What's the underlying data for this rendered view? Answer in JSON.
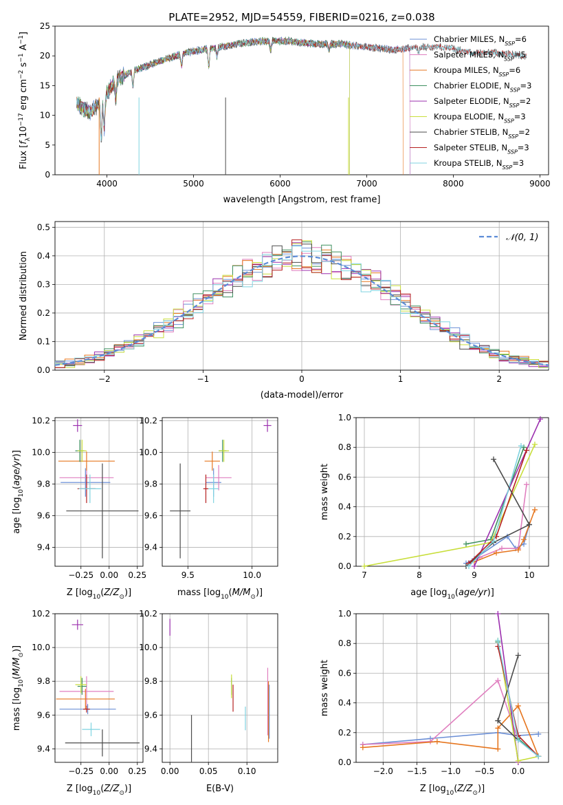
{
  "figure_title": "PLATE=2952, MJD=54559, FIBERID=0216, z=0.038",
  "colors": {
    "Chabrier MILES": "#6b8fd6",
    "Salpeter MILES": "#e07fbf",
    "Kroupa MILES": "#e6761f",
    "Chabrier ELODIE": "#3d8f5f",
    "Salpeter ELODIE": "#9b2fae",
    "Kroupa ELODIE": "#c8de3a",
    "Chabrier STELIB": "#4a4a4a",
    "Salpeter STELIB": "#b51f1f",
    "Kroupa STELIB": "#7fd3e0",
    "gaussian": "#5b8bd6"
  },
  "chart_data": [
    {
      "type": "line",
      "title": "PLATE=2952, MJD=54559, FIBERID=0216, z=0.038",
      "xlabel": "wavelength [Angstrom, rest frame]",
      "ylabel": "Flux [fλ10⁻¹⁷ erg cm⁻² s⁻¹ A⁻¹]",
      "xlim": [
        3400,
        9100
      ],
      "ylim": [
        0,
        25
      ],
      "xticks": [
        4000,
        5000,
        6000,
        7000,
        8000,
        9000
      ],
      "yticks": [
        0,
        5,
        10,
        15,
        20,
        25
      ],
      "grid": false,
      "legend_position": "right",
      "spectrum_range": [
        3650,
        8850
      ],
      "continuum_points": {
        "x": [
          3650,
          3800,
          3950,
          4100,
          4300,
          4500,
          4700,
          4900,
          5100,
          5300,
          5500,
          5800,
          6100,
          6400,
          6700,
          7000,
          7300,
          7600,
          7900,
          8200,
          8500,
          8850
        ],
        "y": [
          12,
          10.5,
          12.5,
          16,
          17.5,
          18.5,
          19.5,
          20.5,
          21,
          21.5,
          22,
          22.5,
          22.5,
          22,
          22,
          21.5,
          21,
          21.5,
          21.5,
          20.5,
          20.5,
          20
        ]
      },
      "series": [
        {
          "name": "Chabrier MILES",
          "n_ssp": "6",
          "end": 7500
        },
        {
          "name": "Salpeter MILES",
          "n_ssp": "5",
          "end": 7500
        },
        {
          "name": "Kroupa MILES",
          "n_ssp": "6",
          "end": 7420
        },
        {
          "name": "Chabrier ELODIE",
          "n_ssp": "3",
          "end": 6800
        },
        {
          "name": "Salpeter ELODIE",
          "n_ssp": "2",
          "end": 6800
        },
        {
          "name": "Kroupa ELODIE",
          "n_ssp": "3",
          "end": 6800
        },
        {
          "name": "Chabrier STELIB",
          "n_ssp": "2",
          "end": 8850
        },
        {
          "name": "Salpeter STELIB",
          "n_ssp": "3",
          "end": 8850
        },
        {
          "name": "Kroupa STELIB",
          "n_ssp": "3",
          "end": 8850
        }
      ],
      "legend_entries": [
        {
          "label": "Chabrier MILES, N",
          "sub": "SSP",
          "value": "=6"
        },
        {
          "label": "Salpeter MILES, N",
          "sub": "SSP",
          "value": "=5"
        },
        {
          "label": "Kroupa MILES, N",
          "sub": "SSP",
          "value": "=6"
        },
        {
          "label": "Chabrier ELODIE, N",
          "sub": "SSP",
          "value": "=3"
        },
        {
          "label": "Salpeter ELODIE, N",
          "sub": "SSP",
          "value": "=2"
        },
        {
          "label": "Kroupa ELODIE, N",
          "sub": "SSP",
          "value": "=3"
        },
        {
          "label": "Chabrier STELIB, N",
          "sub": "SSP",
          "value": "=2"
        },
        {
          "label": "Salpeter STELIB, N",
          "sub": "SSP",
          "value": "=3"
        },
        {
          "label": "Kroupa STELIB, N",
          "sub": "SSP",
          "value": "=3"
        }
      ]
    },
    {
      "type": "histogram",
      "xlabel": "(data-model)/error",
      "ylabel": "Normed distribution",
      "xlim": [
        -2.5,
        2.5
      ],
      "ylim": [
        0,
        0.52
      ],
      "xticks": [
        -2,
        -1,
        0,
        1,
        2
      ],
      "yticks": [
        0.0,
        0.1,
        0.2,
        0.3,
        0.4,
        0.5
      ],
      "grid": true,
      "legend_position": "top-right",
      "legend_label": "𝒩(0, 1)",
      "bin_width": 0.1,
      "gaussian": {
        "mean": 0,
        "sigma": 1
      }
    },
    {
      "type": "errorbar",
      "xlabel": "Z [log10(Z/Z⊙)]",
      "ylabel": "age  [log10(age/yr)]",
      "xlim": [
        -0.48,
        0.3
      ],
      "ylim": [
        9.28,
        10.22
      ],
      "xticks": [
        -0.25,
        0.0,
        0.25
      ],
      "yticks": [
        9.4,
        9.6,
        9.8,
        10.0,
        10.2
      ],
      "points": [
        {
          "series": "Chabrier MILES",
          "x": -0.21,
          "y": 9.81,
          "xerr": 0.22,
          "yerr": 0.09
        },
        {
          "series": "Salpeter MILES",
          "x": -0.2,
          "y": 9.84,
          "xerr": 0.24,
          "yerr": 0.08
        },
        {
          "series": "Kroupa MILES",
          "x": -0.2,
          "y": 9.945,
          "xerr": 0.25,
          "yerr": 0.06
        },
        {
          "series": "Chabrier ELODIE",
          "x": -0.26,
          "y": 10.01,
          "xerr": 0.04,
          "yerr": 0.07
        },
        {
          "series": "Salpeter ELODIE",
          "x": -0.28,
          "y": 10.17,
          "xerr": 0.04,
          "yerr": 0.04
        },
        {
          "series": "Kroupa ELODIE",
          "x": -0.24,
          "y": 10.01,
          "xerr": 0.04,
          "yerr": 0.07
        },
        {
          "series": "Chabrier STELIB",
          "x": -0.06,
          "y": 9.63,
          "xerr": 0.32,
          "yerr": 0.3
        },
        {
          "series": "Salpeter STELIB",
          "x": -0.2,
          "y": 9.77,
          "xerr": 0.08,
          "yerr": 0.09
        },
        {
          "series": "Kroupa STELIB",
          "x": -0.17,
          "y": 9.77,
          "xerr": 0.1,
          "yerr": 0.09
        }
      ]
    },
    {
      "type": "errorbar",
      "xlabel": "mass [log10(M/M⊙)]",
      "ylabel": "",
      "xlim": [
        9.3,
        10.2
      ],
      "ylim": [
        9.28,
        10.22
      ],
      "xticks": [
        9.5,
        10.0
      ],
      "yticks": [
        9.4,
        9.6,
        9.8,
        10.0,
        10.2
      ],
      "points": [
        {
          "series": "Chabrier MILES",
          "x": 9.7,
          "y": 9.81,
          "xerr": 0.06,
          "yerr": 0.09
        },
        {
          "series": "Salpeter MILES",
          "x": 9.74,
          "y": 9.84,
          "xerr": 0.1,
          "yerr": 0.08
        },
        {
          "series": "Kroupa MILES",
          "x": 9.69,
          "y": 9.945,
          "xerr": 0.06,
          "yerr": 0.06
        },
        {
          "series": "Chabrier ELODIE",
          "x": 9.77,
          "y": 10.01,
          "xerr": 0.03,
          "yerr": 0.07
        },
        {
          "series": "Salpeter ELODIE",
          "x": 10.12,
          "y": 10.17,
          "xerr": 0.03,
          "yerr": 0.04
        },
        {
          "series": "Kroupa ELODIE",
          "x": 9.78,
          "y": 10.01,
          "xerr": 0.04,
          "yerr": 0.07
        },
        {
          "series": "Chabrier STELIB",
          "x": 9.44,
          "y": 9.63,
          "xerr": 0.08,
          "yerr": 0.3
        },
        {
          "series": "Salpeter STELIB",
          "x": 9.64,
          "y": 9.77,
          "xerr": 0.02,
          "yerr": 0.09
        },
        {
          "series": "Kroupa STELIB",
          "x": 9.7,
          "y": 9.77,
          "xerr": 0.04,
          "yerr": 0.09
        }
      ]
    },
    {
      "type": "line",
      "xlabel": "age  [log10(age/yr)]",
      "ylabel": "mass weight",
      "xlim": [
        6.85,
        10.35
      ],
      "ylim": [
        0,
        1.0
      ],
      "xticks": [
        7,
        8,
        9,
        10
      ],
      "yticks": [
        0.0,
        0.2,
        0.4,
        0.6,
        0.8,
        1.0
      ],
      "series": [
        {
          "name": "Chabrier MILES",
          "x": [
            8.85,
            9.0,
            9.6,
            9.75,
            9.9,
            10.0
          ],
          "y": [
            0.02,
            0.05,
            0.2,
            0.12,
            0.15,
            0.28
          ]
        },
        {
          "name": "Salpeter MILES",
          "x": [
            8.9,
            9.1,
            9.5,
            9.8,
            9.95
          ],
          "y": [
            0.02,
            0.06,
            0.12,
            0.12,
            0.55
          ]
        },
        {
          "name": "Kroupa MILES",
          "x": [
            9.0,
            9.4,
            9.8,
            9.9,
            10.1
          ],
          "y": [
            0.03,
            0.09,
            0.11,
            0.18,
            0.38
          ]
        },
        {
          "name": "Chabrier ELODIE",
          "x": [
            8.85,
            9.3,
            9.9
          ],
          "y": [
            0.15,
            0.18,
            0.8
          ]
        },
        {
          "name": "Salpeter ELODIE",
          "x": [
            9.0,
            10.2
          ],
          "y": [
            0.0,
            0.99
          ]
        },
        {
          "name": "Kroupa ELODIE",
          "x": [
            7.0,
            9.3,
            10.1
          ],
          "y": [
            0.0,
            0.16,
            0.82
          ]
        },
        {
          "name": "Chabrier STELIB",
          "x": [
            8.85,
            9.35,
            10.0
          ],
          "y": [
            0.0,
            0.16,
            0.28
          ]
        },
        {
          "name": "Salpeter STELIB",
          "x": [
            8.9,
            9.4,
            9.95
          ],
          "y": [
            0.02,
            0.2,
            0.78
          ]
        },
        {
          "name": "Kroupa STELIB",
          "x": [
            8.9,
            9.35,
            9.85
          ],
          "y": [
            0.0,
            0.17,
            0.81
          ]
        },
        {
          "name": "Chabrier STELIB",
          "x": [
            9.35,
            10.0
          ],
          "y": [
            0.72,
            0.28
          ]
        }
      ]
    },
    {
      "type": "errorbar",
      "xlabel": "Z [log10(Z/Z⊙)]",
      "ylabel": "mass [log10(M/M⊙)]",
      "xlim": [
        -0.48,
        0.3
      ],
      "ylim": [
        9.32,
        10.2
      ],
      "xticks": [
        -0.25,
        0.0,
        0.25
      ],
      "yticks": [
        9.4,
        9.6,
        9.8,
        10.0,
        10.2
      ],
      "points": [
        {
          "series": "Chabrier MILES",
          "x": -0.19,
          "y": 9.635,
          "xerr": 0.25,
          "yerr": 0.03
        },
        {
          "series": "Salpeter MILES",
          "x": -0.2,
          "y": 9.74,
          "xerr": 0.24,
          "yerr": 0.09
        },
        {
          "series": "Kroupa MILES",
          "x": -0.21,
          "y": 9.695,
          "xerr": 0.26,
          "yerr": 0.06
        },
        {
          "series": "Chabrier ELODIE",
          "x": -0.24,
          "y": 9.77,
          "xerr": 0.04,
          "yerr": 0.05
        },
        {
          "series": "Salpeter ELODIE",
          "x": -0.28,
          "y": 10.135,
          "xerr": 0.05,
          "yerr": 0.03
        },
        {
          "series": "Kroupa ELODIE",
          "x": -0.25,
          "y": 9.78,
          "xerr": 0.05,
          "yerr": 0.05
        },
        {
          "series": "Chabrier STELIB",
          "x": -0.06,
          "y": 9.435,
          "xerr": 0.33,
          "yerr": 0.08
        },
        {
          "series": "Salpeter STELIB",
          "x": -0.2,
          "y": 9.635,
          "xerr": 0.03,
          "yerr": 0.02
        },
        {
          "series": "Kroupa STELIB",
          "x": -0.16,
          "y": 9.515,
          "xerr": 0.08,
          "yerr": 0.04
        }
      ]
    },
    {
      "type": "errorbar",
      "xlabel": "E(B-V)",
      "ylabel": "",
      "xlim": [
        -0.01,
        0.14
      ],
      "ylim": [
        9.32,
        10.2
      ],
      "xticks": [
        0.0,
        0.05,
        0.1
      ],
      "yticks": [
        9.4,
        9.6,
        9.8,
        10.0,
        10.2
      ],
      "points": [
        {
          "series": "Chabrier MILES",
          "x": 0.129,
          "y": 9.62,
          "yerr": 0.16
        },
        {
          "series": "Salpeter MILES",
          "x": 0.127,
          "y": 9.68,
          "yerr": 0.2
        },
        {
          "series": "Kroupa MILES",
          "x": 0.128,
          "y": 9.62,
          "yerr": 0.18
        },
        {
          "series": "Chabrier ELODIE",
          "x": 0.08,
          "y": 9.77,
          "yerr": 0.05
        },
        {
          "series": "Salpeter ELODIE",
          "x": 0.0,
          "y": 10.12,
          "yerr": 0.05
        },
        {
          "series": "Kroupa ELODIE",
          "x": 0.08,
          "y": 9.77,
          "yerr": 0.07
        },
        {
          "series": "Chabrier STELIB",
          "x": 0.028,
          "y": 9.41,
          "yerr": 0.19
        },
        {
          "series": "Salpeter STELIB",
          "x": 0.082,
          "y": 9.7,
          "yerr": 0.08
        },
        {
          "series": "Kroupa STELIB",
          "x": 0.098,
          "y": 9.58,
          "yerr": 0.07
        }
      ]
    },
    {
      "type": "line",
      "xlabel": "Z [log10(Z/Z⊙)]",
      "ylabel": "mass weight",
      "xlim": [
        -2.4,
        0.45
      ],
      "ylim": [
        0,
        1.0
      ],
      "xticks": [
        -2.0,
        -1.5,
        -1.0,
        -0.5,
        0.0
      ],
      "yticks": [
        0.0,
        0.2,
        0.4,
        0.6,
        0.8,
        1.0
      ],
      "series": [
        {
          "name": "Chabrier MILES",
          "x": [
            -2.3,
            -1.3,
            -0.3,
            0.0,
            0.3
          ],
          "y": [
            0.12,
            0.16,
            0.2,
            0.18,
            0.19
          ]
        },
        {
          "name": "Salpeter MILES",
          "x": [
            -2.3,
            -1.3,
            -0.3,
            0.0,
            0.3
          ],
          "y": [
            0.12,
            0.14,
            0.55,
            0.15,
            0.04
          ]
        },
        {
          "name": "Kroupa MILES",
          "x": [
            -2.3,
            -1.2,
            -0.3,
            -0.3,
            0.0,
            0.3
          ],
          "y": [
            0.1,
            0.14,
            0.09,
            0.23,
            0.38,
            0.04
          ]
        },
        {
          "name": "Chabrier ELODIE",
          "x": [
            -0.3,
            0.0,
            0.3
          ],
          "y": [
            0.81,
            0.16,
            0.04
          ]
        },
        {
          "name": "Salpeter ELODIE",
          "x": [
            -0.3,
            0.0
          ],
          "y": [
            1.0,
            0.0
          ]
        },
        {
          "name": "Kroupa ELODIE",
          "x": [
            -0.3,
            0.0,
            0.3
          ],
          "y": [
            0.82,
            0.01,
            0.04
          ]
        },
        {
          "name": "Chabrier STELIB",
          "x": [
            -0.3,
            0.0,
            -0.3,
            0.0
          ],
          "y": [
            0.28,
            0.72,
            0.28,
            0.15
          ]
        },
        {
          "name": "Salpeter STELIB",
          "x": [
            -0.3,
            0.0,
            0.3
          ],
          "y": [
            0.78,
            0.18,
            0.04
          ]
        },
        {
          "name": "Kroupa STELIB",
          "x": [
            -0.3,
            0.0,
            0.3
          ],
          "y": [
            0.82,
            0.15,
            0.04
          ]
        }
      ]
    }
  ]
}
